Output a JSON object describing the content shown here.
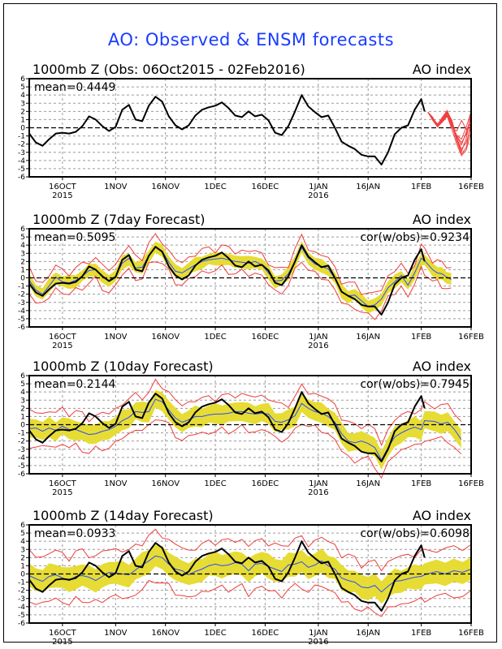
{
  "title": "AO: Observed & ENSM forecasts",
  "colors": {
    "title": "#1a3cff",
    "observed": "#000000",
    "ensemble_mean": "#2b4cff",
    "spread_band": "#e6dc34",
    "spread_envelope": "#f03c3c",
    "members": "#f04040"
  },
  "chart_data": [
    {
      "type": "line",
      "title": "1000mb Z (Obs: 06Oct2015 - 02Feb2016)",
      "right_title": "AO index",
      "stat_left": "mean=0.4449",
      "stat_right": "",
      "ylim": [
        -6,
        6
      ],
      "yticks": [
        -6,
        -5,
        -4,
        -3,
        -2,
        -1,
        0,
        1,
        2,
        3,
        4,
        5,
        6
      ],
      "xticks": [
        "16OCT",
        "1NOV",
        "16NOV",
        "1DEC",
        "16DEC",
        "1JAN",
        "16JAN",
        "1FEB",
        "16FEB"
      ],
      "xtick_sublabels": {
        "16OCT": "2015",
        "1JAN": "2016"
      },
      "grid": true,
      "zero_line": true,
      "has_members": true
    },
    {
      "type": "line",
      "title": "1000mb Z (7day Forecast)",
      "right_title": "AO index",
      "stat_left": "mean=0.5095",
      "stat_right": "cor(w/obs)=0.9234",
      "ylim": [
        -6,
        6
      ],
      "yticks": [
        -6,
        -5,
        -4,
        -3,
        -2,
        -1,
        0,
        1,
        2,
        3,
        4,
        5,
        6
      ],
      "xticks": [
        "16OCT",
        "1NOV",
        "16NOV",
        "1DEC",
        "16DEC",
        "1JAN",
        "16JAN",
        "1FEB",
        "16FEB"
      ],
      "xtick_sublabels": {
        "16OCT": "2015",
        "1JAN": "2016"
      },
      "grid": true,
      "zero_line": true,
      "forecast_lead": 7,
      "band_halfwidth": 0.75,
      "envelope_halfwidth": 1.35,
      "forecast_end_day": 127
    },
    {
      "type": "line",
      "title": "1000mb Z (10day Forecast)",
      "right_title": "AO index",
      "stat_left": "mean=0.2144",
      "stat_right": "cor(w/obs)=0.7945",
      "ylim": [
        -6,
        6
      ],
      "yticks": [
        -6,
        -5,
        -4,
        -3,
        -2,
        -1,
        0,
        1,
        2,
        3,
        4,
        5,
        6
      ],
      "xticks": [
        "16OCT",
        "1NOV",
        "16NOV",
        "1DEC",
        "16DEC",
        "1JAN",
        "16JAN",
        "1FEB",
        "16FEB"
      ],
      "xtick_sublabels": {
        "16OCT": "2015",
        "1JAN": "2016"
      },
      "grid": true,
      "zero_line": true,
      "forecast_lead": 10,
      "band_halfwidth": 1.15,
      "envelope_halfwidth": 2.1,
      "forecast_end_day": 130
    },
    {
      "type": "line",
      "title": "1000mb Z (14day Forecast)",
      "right_title": "AO index",
      "stat_left": "mean=0.0933",
      "stat_right": "cor(w/obs)=0.6098",
      "ylim": [
        -6,
        6
      ],
      "yticks": [
        -6,
        -5,
        -4,
        -3,
        -2,
        -1,
        0,
        1,
        2,
        3,
        4,
        5,
        6
      ],
      "xticks": [
        "16OCT",
        "1NOV",
        "16NOV",
        "1DEC",
        "16DEC",
        "1JAN",
        "16JAN",
        "1FEB",
        "16FEB"
      ],
      "xtick_sublabels": {
        "16OCT": "2015",
        "1JAN": "2016"
      },
      "grid": true,
      "zero_line": true,
      "forecast_lead": 14,
      "band_halfwidth": 1.4,
      "envelope_halfwidth": 2.9,
      "forecast_end_day": 133
    }
  ],
  "series": {
    "x_start": "06Oct2015",
    "x_end": "16Feb2016",
    "xtick_day_offsets": [
      10,
      26,
      41,
      56,
      71,
      87,
      102,
      118,
      133
    ],
    "observed_day_offsets": [
      0,
      2,
      4,
      6,
      8,
      10,
      12,
      14,
      16,
      18,
      20,
      22,
      24,
      26,
      28,
      30,
      32,
      34,
      36,
      38,
      40,
      42,
      44,
      46,
      48,
      50,
      52,
      54,
      56,
      58,
      60,
      62,
      64,
      66,
      68,
      70,
      72,
      74,
      76,
      78,
      80,
      82,
      84,
      86,
      88,
      90,
      92,
      94,
      96,
      98,
      100,
      102,
      104,
      106,
      108,
      110,
      112,
      114,
      116,
      118,
      119
    ],
    "observed": [
      -0.7,
      -1.8,
      -2.2,
      -1.4,
      -0.7,
      -0.6,
      -0.7,
      -0.5,
      0.2,
      1.4,
      1.0,
      0.2,
      -0.4,
      0.1,
      2.2,
      2.8,
      1.0,
      0.8,
      2.7,
      3.8,
      3.2,
      1.4,
      0.3,
      -0.2,
      0.3,
      1.5,
      2.2,
      2.5,
      2.7,
      3.1,
      2.4,
      1.5,
      1.3,
      2.0,
      1.4,
      1.6,
      0.9,
      -0.6,
      -0.9,
      0.2,
      2.0,
      4.0,
      2.6,
      1.9,
      1.3,
      1.5,
      0.0,
      -1.7,
      -2.2,
      -2.6,
      -3.3,
      -3.5,
      -3.5,
      -4.5,
      -3.0,
      -0.8,
      0.0,
      0.3,
      2.2,
      3.5,
      2.0
    ],
    "ensemble_7day": [
      -0.3,
      -1.5,
      -2.0,
      -1.0,
      0.1,
      -0.5,
      -0.6,
      -0.3,
      0.2,
      0.9,
      1.0,
      0.1,
      -0.3,
      0.2,
      1.8,
      2.4,
      1.2,
      1.3,
      2.7,
      3.7,
      3.3,
      1.9,
      0.8,
      0.6,
      1.1,
      1.6,
      2.0,
      2.2,
      2.3,
      2.4,
      2.2,
      2.0,
      1.9,
      1.8,
      2.0,
      1.6,
      0.6,
      -0.4,
      -0.3,
      0.5,
      2.0,
      3.7,
      2.4,
      1.7,
      1.4,
      1.1,
      -0.1,
      -1.7,
      -2.2,
      -2.1,
      -2.8,
      -3.5,
      -3.3,
      -2.6,
      -1.2,
      -0.5,
      0.3,
      -0.9,
      0.6,
      2.4,
      2.1
    ],
    "ensemble_7day_tail": [
      1.0,
      0.6,
      0.5,
      0.1,
      -0.2
    ],
    "ensemble_10day": [
      -0.5,
      -0.4,
      -0.8,
      -0.4,
      -0.7,
      -0.2,
      -0.6,
      -0.6,
      -0.9,
      -1.2,
      -1.1,
      -0.8,
      -0.6,
      -0.2,
      0.5,
      0.9,
      1.6,
      1.5,
      1.6,
      3.1,
      2.8,
      1.8,
      0.8,
      0.3,
      0.6,
      1.0,
      1.0,
      1.2,
      1.3,
      1.3,
      1.4,
      1.6,
      1.6,
      1.4,
      1.3,
      1.4,
      1.3,
      0.4,
      0.3,
      0.6,
      1.1,
      2.6,
      2.0,
      1.6,
      1.4,
      1.0,
      0.3,
      -1.1,
      -2.0,
      -2.2,
      -2.0,
      -2.3,
      -2.8,
      -4.3,
      -2.8,
      -1.5,
      -1.0,
      -0.6,
      -0.3,
      -0.6,
      0.5
    ],
    "ensemble_10day_tail": [
      0.4,
      0.1,
      0.3,
      -0.6,
      -1.8
    ],
    "ensemble_14day": [
      -0.2,
      -0.6,
      -0.9,
      -0.3,
      -0.1,
      -0.5,
      -0.8,
      -0.3,
      -0.2,
      -0.4,
      -0.8,
      -0.3,
      0.2,
      0.1,
      0.0,
      -0.1,
      0.5,
      1.1,
      1.6,
      2.2,
      2.0,
      1.2,
      0.6,
      0.4,
      -0.1,
      0.3,
      0.6,
      1.0,
      1.2,
      1.0,
      1.1,
      1.4,
      1.2,
      0.4,
      1.2,
      1.3,
      0.9,
      0.6,
      0.3,
      1.1,
      1.2,
      1.5,
      0.8,
      1.1,
      1.6,
      1.0,
      0.6,
      -0.5,
      -0.8,
      -1.0,
      -1.6,
      -1.7,
      -1.4,
      -2.2,
      -1.5,
      -0.9,
      -0.8,
      -0.6,
      -0.4,
      -0.3,
      -0.1
    ],
    "ensemble_14day_tail": [
      0.3,
      0.0,
      0.4,
      0.2,
      0.6
    ],
    "member_forecasts_start_day": 120,
    "member_forecasts": [
      [
        1.9,
        1.2,
        0.4,
        0.8,
        1.8,
        0.6,
        -1.1,
        -2.1,
        -0.5,
        1.2
      ],
      [
        1.9,
        1.0,
        0.3,
        1.0,
        2.0,
        0.9,
        -1.3,
        -2.6,
        -1.8,
        0.2
      ],
      [
        1.9,
        1.1,
        0.5,
        0.9,
        1.6,
        0.3,
        -1.6,
        -3.2,
        -2.4,
        0.9
      ],
      [
        1.9,
        1.3,
        0.2,
        1.2,
        1.9,
        0.2,
        -0.9,
        -1.4,
        0.1,
        2.0
      ],
      [
        1.9,
        0.9,
        0.1,
        0.7,
        1.4,
        -0.2,
        -2.0,
        -3.4,
        -2.7,
        -0.4
      ],
      [
        1.9,
        1.2,
        0.3,
        1.1,
        1.7,
        0.4,
        -1.0,
        -1.8,
        -0.8,
        1.6
      ],
      [
        1.9,
        1.0,
        0.2,
        0.8,
        1.5,
        0.0,
        -0.4,
        0.9,
        -0.2,
        0.6
      ],
      [
        1.9,
        1.1,
        0.4,
        1.3,
        2.1,
        0.7,
        -1.4,
        -2.9,
        -1.3,
        1.9
      ]
    ]
  }
}
